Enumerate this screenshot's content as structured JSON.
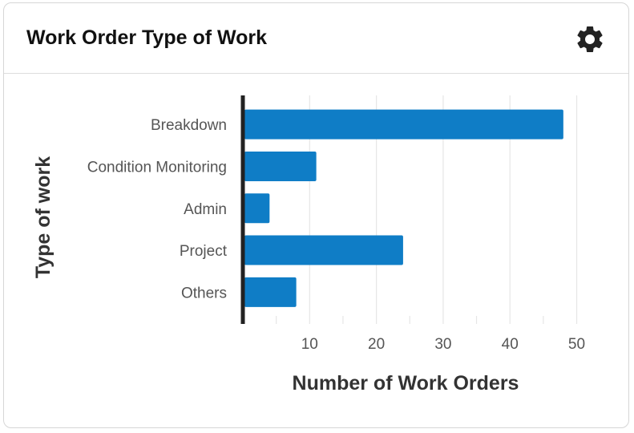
{
  "card": {
    "title": "Work Order Type of Work",
    "settings_icon": "gear-icon"
  },
  "colors": {
    "bar": "#0f7dc6",
    "axis": "#222222",
    "grid": "#e6e6e6",
    "tick_text": "#555555",
    "label_text": "#333333"
  },
  "chart_data": {
    "type": "bar",
    "orientation": "horizontal",
    "title": "",
    "xlabel": "Number of Work Orders",
    "ylabel": "Type of work",
    "categories": [
      "Breakdown",
      "Condition Monitoring",
      "Admin",
      "Project",
      "Others"
    ],
    "values": [
      48,
      11,
      4,
      24,
      8
    ],
    "xlim": [
      0,
      52
    ],
    "xticks": [
      10,
      20,
      30,
      40,
      50
    ],
    "grid": true,
    "legend": "none"
  }
}
